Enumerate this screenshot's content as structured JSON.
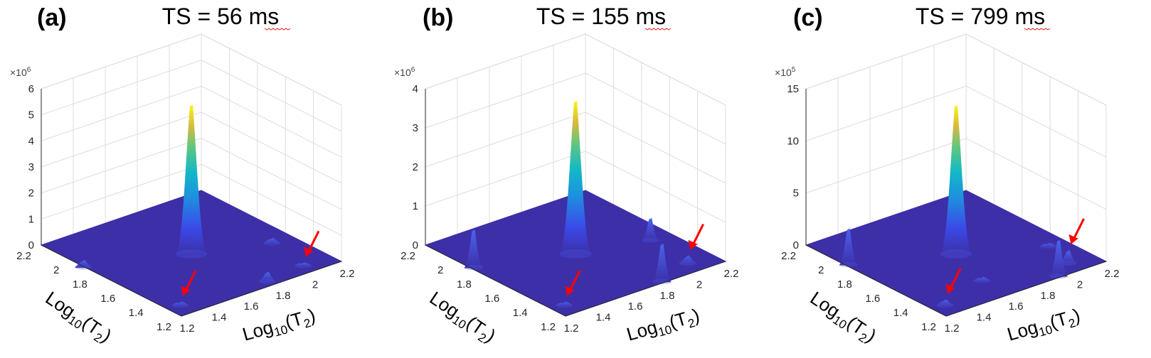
{
  "figure": {
    "description_free": true,
    "colors": {
      "floor": "#3d2fa8",
      "arrow": "#ff0000",
      "grid": "#dcdcdc",
      "axis": "#262626",
      "text": "#000000",
      "squiggle": "#e02020"
    }
  },
  "chart_data": [
    {
      "type": "surface",
      "panel_label": "(a)",
      "title": "TS = 56 ms",
      "exponent_prefix": "×10",
      "exponent_power": "6",
      "z_ticks": [
        0,
        1,
        2,
        3,
        4,
        5,
        6
      ],
      "zlim": [
        0,
        6
      ],
      "x_ticks": [
        "1.2",
        "1.4",
        "1.6",
        "1.8",
        "2",
        "2.2"
      ],
      "y_ticks": [
        "1.2",
        "1.4",
        "1.6",
        "1.8",
        "2",
        "2.2"
      ],
      "xlim": [
        1.2,
        2.2
      ],
      "ylim": [
        1.2,
        2.2
      ],
      "xlabel": {
        "base": "Log",
        "sub": "10",
        "open": "(T",
        "sub2": "2",
        "close": ")"
      },
      "ylabel": {
        "base": "Log",
        "sub": "10",
        "open": "(T",
        "sub2": "2",
        "close": ")"
      },
      "peaks": [
        {
          "x": 1.7,
          "y": 1.7,
          "z": 5.7
        },
        {
          "x": 1.2,
          "y": 1.9,
          "z": 0.25
        },
        {
          "x": 1.78,
          "y": 1.25,
          "z": 0.35
        },
        {
          "x": 2.08,
          "y": 1.56,
          "z": 0.18
        },
        {
          "x": 1.28,
          "y": 1.3,
          "z": 0.12
        },
        {
          "x": 2.03,
          "y": 1.28,
          "z": 0.1
        }
      ],
      "arrows": [
        {
          "x": 1.28,
          "y": 1.3,
          "z": 0.12
        },
        {
          "x": 2.03,
          "y": 1.28,
          "z": 0.1
        }
      ]
    },
    {
      "type": "surface",
      "panel_label": "(b)",
      "title": "TS = 155 ms",
      "exponent_prefix": "×10",
      "exponent_power": "6",
      "z_ticks": [
        0,
        1,
        2,
        3,
        4
      ],
      "zlim": [
        0,
        4
      ],
      "x_ticks": [
        "1.2",
        "1.4",
        "1.6",
        "1.8",
        "2",
        "2.2"
      ],
      "y_ticks": [
        "1.2",
        "1.4",
        "1.6",
        "1.8",
        "2",
        "2.2"
      ],
      "xlim": [
        1.2,
        2.2
      ],
      "ylim": [
        1.2,
        2.2
      ],
      "xlabel": {
        "base": "Log",
        "sub": "10",
        "open": "(T",
        "sub2": "2",
        "close": ")"
      },
      "ylabel": {
        "base": "Log",
        "sub": "10",
        "open": "(T",
        "sub2": "2",
        "close": ")"
      },
      "peaks": [
        {
          "x": 1.7,
          "y": 1.7,
          "z": 3.9
        },
        {
          "x": 1.22,
          "y": 1.88,
          "z": 0.95
        },
        {
          "x": 1.82,
          "y": 1.22,
          "z": 0.95
        },
        {
          "x": 2.08,
          "y": 1.6,
          "z": 0.55
        },
        {
          "x": 1.28,
          "y": 1.3,
          "z": 0.08
        },
        {
          "x": 2.05,
          "y": 1.3,
          "z": 0.18
        }
      ],
      "arrows": [
        {
          "x": 1.28,
          "y": 1.3,
          "z": 0.08
        },
        {
          "x": 2.05,
          "y": 1.3,
          "z": 0.18
        }
      ]
    },
    {
      "type": "surface",
      "panel_label": "(c)",
      "title": "TS = 799 ms",
      "exponent_prefix": "×10",
      "exponent_power": "5",
      "z_ticks": [
        0,
        5,
        10,
        15
      ],
      "zlim": [
        0,
        15
      ],
      "x_ticks": [
        "1.2",
        "1.4",
        "1.6",
        "1.8",
        "2",
        "2.2"
      ],
      "y_ticks": [
        "1.2",
        "1.4",
        "1.6",
        "1.8",
        "2",
        "2.2"
      ],
      "xlim": [
        1.2,
        2.2
      ],
      "ylim": [
        1.2,
        2.2
      ],
      "xlabel": {
        "base": "Log",
        "sub": "10",
        "open": "(T",
        "sub2": "2",
        "close": ")"
      },
      "ylabel": {
        "base": "Log",
        "sub": "10",
        "open": "(T",
        "sub2": "2",
        "close": ")"
      },
      "peaks": [
        {
          "x": 1.7,
          "y": 1.7,
          "z": 14.2
        },
        {
          "x": 1.22,
          "y": 1.92,
          "z": 3.4
        },
        {
          "x": 1.92,
          "y": 1.22,
          "z": 3.4
        },
        {
          "x": 2.1,
          "y": 1.5,
          "z": 0.25
        },
        {
          "x": 1.6,
          "y": 1.4,
          "z": 0.3
        },
        {
          "x": 1.28,
          "y": 1.3,
          "z": 0.5
        },
        {
          "x": 2.05,
          "y": 1.3,
          "z": 1.2
        }
      ],
      "arrows": [
        {
          "x": 1.28,
          "y": 1.3,
          "z": 0.5
        },
        {
          "x": 2.05,
          "y": 1.3,
          "z": 1.2
        }
      ]
    }
  ]
}
